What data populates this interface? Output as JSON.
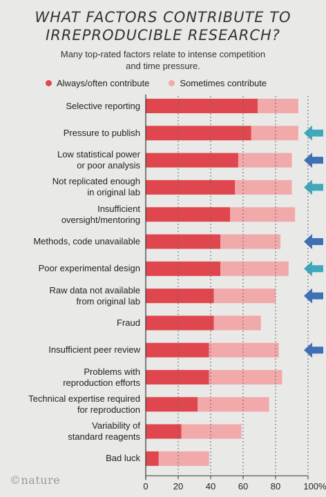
{
  "chart_data": {
    "type": "bar",
    "stacked": true,
    "orientation": "horizontal",
    "title_lines": [
      "WHAT FACTORS CONTRIBUTE TO",
      "IRREPRODUCIBLE RESEARCH?"
    ],
    "subtitle_lines": [
      "Many top-rated factors relate to intense competition",
      "and time pressure."
    ],
    "xlim": [
      0,
      100
    ],
    "x_ticks": [
      "0",
      "20",
      "40",
      "60",
      "80",
      "100%"
    ],
    "x_tick_values": [
      0,
      20,
      40,
      60,
      80,
      100
    ],
    "grid": "vertical dotted",
    "legend_position": "top",
    "series": [
      {
        "name": "Always/often contribute",
        "color": "#e0464d"
      },
      {
        "name": "Sometimes contribute",
        "color": "#f1a9aa"
      }
    ],
    "categories": [
      {
        "label": [
          "Selective reporting"
        ],
        "always": 69,
        "sometimes": 25,
        "arrow": null
      },
      {
        "label": [
          "Pressure to publish"
        ],
        "always": 65,
        "sometimes": 29,
        "arrow": "teal"
      },
      {
        "label": [
          "Low statistical power",
          "or poor analysis"
        ],
        "always": 57,
        "sometimes": 33,
        "arrow": "blue"
      },
      {
        "label": [
          "Not replicated enough",
          "in original lab"
        ],
        "always": 55,
        "sometimes": 35,
        "arrow": "teal"
      },
      {
        "label": [
          "Insufficient",
          "oversight/mentoring"
        ],
        "always": 52,
        "sometimes": 40,
        "arrow": null
      },
      {
        "label": [
          "Methods, code unavailable"
        ],
        "always": 46,
        "sometimes": 37,
        "arrow": "blue"
      },
      {
        "label": [
          "Poor experimental design"
        ],
        "always": 46,
        "sometimes": 42,
        "arrow": "teal"
      },
      {
        "label": [
          "Raw data not available",
          "from original lab"
        ],
        "always": 42,
        "sometimes": 38,
        "arrow": "blue"
      },
      {
        "label": [
          "Fraud"
        ],
        "always": 42,
        "sometimes": 29,
        "arrow": null
      },
      {
        "label": [
          "Insufficient peer review"
        ],
        "always": 39,
        "sometimes": 43,
        "arrow": "blue"
      },
      {
        "label": [
          "Problems with",
          "reproduction efforts"
        ],
        "always": 39,
        "sometimes": 45,
        "arrow": null
      },
      {
        "label": [
          "Technical expertise required",
          "for reproduction"
        ],
        "always": 32,
        "sometimes": 44,
        "arrow": null
      },
      {
        "label": [
          "Variability of",
          "standard reagents"
        ],
        "always": 22,
        "sometimes": 37,
        "arrow": null
      },
      {
        "label": [
          "Bad luck"
        ],
        "always": 8,
        "sometimes": 31,
        "arrow": null
      }
    ]
  },
  "colors": {
    "always": "#e0464d",
    "sometimes": "#f1a9aa",
    "arrow_teal": "#3fa8ba",
    "arrow_blue": "#3f6fb5",
    "background": "#e9e9e8"
  },
  "logo_text": "©nature"
}
